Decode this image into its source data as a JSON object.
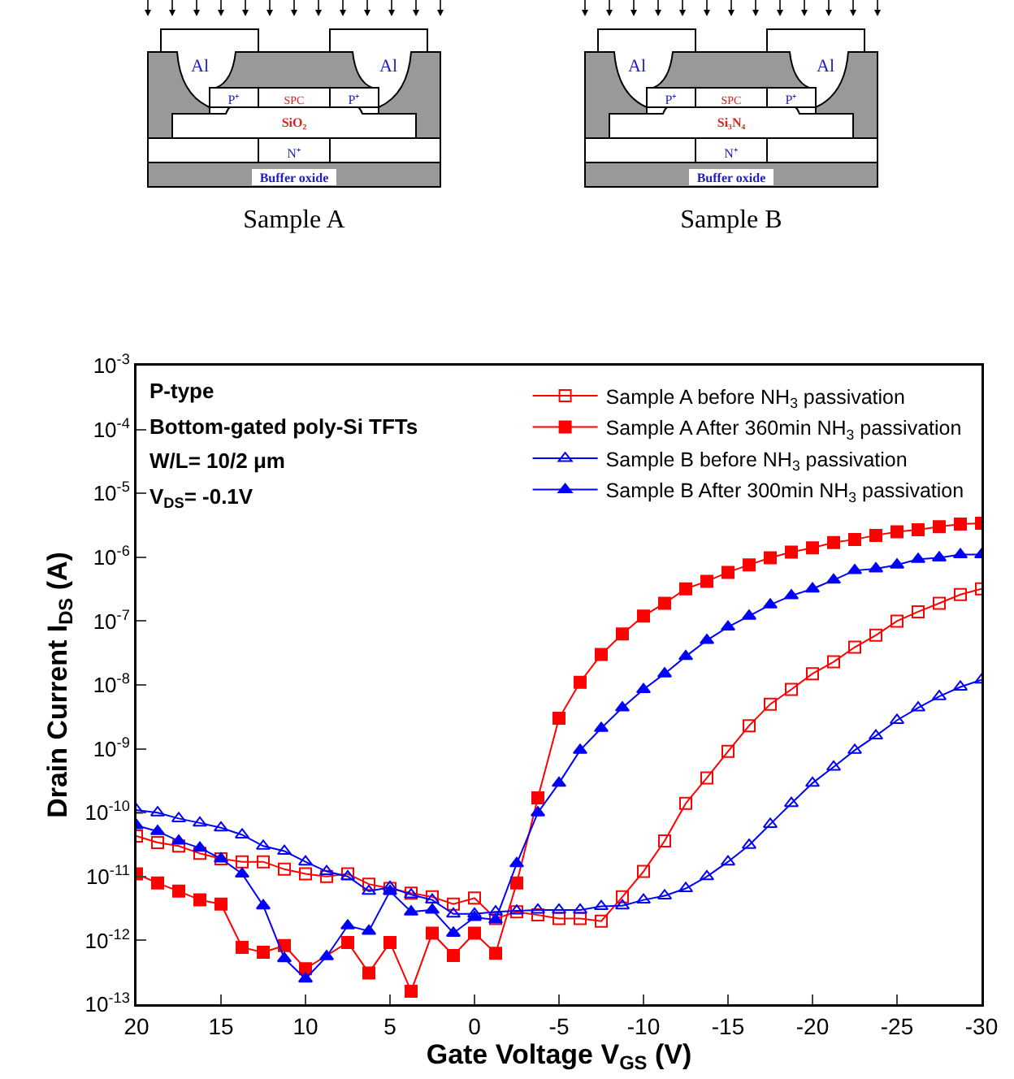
{
  "chart_data": {
    "type": "line",
    "xlabel": "Gate Voltage V$_{GS}$ (V)",
    "ylabel": "Drain Current I$_{DS}$ (A)",
    "annotations": [
      "Al",
      "Al",
      "P⁺",
      "SPC",
      "P⁺",
      "SiO₂",
      "N⁺",
      "Buffer oxide",
      "Sample A",
      "Al",
      "Al",
      "P⁺",
      "SPC",
      "P⁺",
      "Si₃N₄",
      "N⁺",
      "Buffer oxide",
      "Sample B",
      "P-type",
      "Bottom-gated poly-Si TFTs",
      "W/L= 10/2 μm",
      "V$_{DS}$= -0.1V"
    ],
    "x": [
      20,
      18.75,
      17.5,
      16.25,
      15,
      13.75,
      12.5,
      11.25,
      10,
      8.75,
      7.5,
      6.25,
      5,
      3.75,
      2.5,
      1.25,
      0,
      -1.25,
      -2.5,
      -3.75,
      -5,
      -6.25,
      -7.5,
      -8.75,
      -10,
      -11.25,
      -12.5,
      -13.75,
      -15,
      -16.25,
      -17.5,
      -18.75,
      -20,
      -21.25,
      -22.5,
      -23.75,
      -25,
      -26.25,
      -27.5,
      -28.75,
      -30
    ],
    "series": [
      {
        "name": "Sample A before NH$_{3}$ passivation",
        "color": "#ff0000",
        "marker": "square-open",
        "values": [
          4.3e-11,
          3.4e-11,
          3e-11,
          2.3e-11,
          1.9e-11,
          1.7e-11,
          1.7e-11,
          1.3e-11,
          1.1e-11,
          1e-11,
          1.1e-11,
          7.6e-12,
          6.5e-12,
          5.5e-12,
          4.8e-12,
          3.7e-12,
          4.6e-12,
          2.2e-12,
          2.8e-12,
          2.5e-12,
          2.2e-12,
          2.2e-12,
          2e-12,
          4.8e-12,
          1.2e-11,
          3.6e-11,
          1.4e-10,
          3.5e-10,
          9.1e-10,
          2.3e-09,
          5e-09,
          8.5e-09,
          1.5e-08,
          2.3e-08,
          3.9e-08,
          6e-08,
          1e-07,
          1.4e-07,
          1.9e-07,
          2.6e-07,
          3.2e-07
        ]
      },
      {
        "name": "Sample A After 360min NH$_{3}$ passivation",
        "color": "#ff0000",
        "marker": "square",
        "values": [
          1.1e-11,
          7.9e-12,
          5.9e-12,
          4.3e-12,
          3.7e-12,
          7.8e-13,
          6.5e-13,
          8.3e-13,
          3.6e-13,
          null,
          9.3e-13,
          3.1e-13,
          9.3e-13,
          1.6e-13,
          1.3e-12,
          5.8e-13,
          1.3e-12,
          6.3e-13,
          7.9e-12,
          1.7e-10,
          3e-09,
          1.1e-08,
          3e-08,
          6.3e-08,
          1.2e-07,
          1.9e-07,
          3.2e-07,
          4.2e-07,
          5.8e-07,
          7.6e-07,
          9.8e-07,
          1.2e-06,
          1.4e-06,
          1.7e-06,
          1.9e-06,
          2.2e-06,
          2.5e-06,
          2.7e-06,
          3e-06,
          3.3e-06,
          3.4e-06
        ]
      },
      {
        "name": "Sample B before NH$_{3}$ passivation",
        "color": "#0000ff",
        "marker": "triangle-open",
        "values": [
          1.1e-10,
          1e-10,
          8.1e-11,
          6.9e-11,
          5.8e-11,
          4.5e-11,
          3e-11,
          2.5e-11,
          1.7e-11,
          1.2e-11,
          1e-11,
          5.9e-12,
          6.8e-12,
          5.2e-12,
          4.3e-12,
          2.6e-12,
          2.6e-12,
          2.8e-12,
          2.9e-12,
          3e-12,
          3e-12,
          3e-12,
          3.4e-12,
          3.5e-12,
          4.3e-12,
          5e-12,
          6.5e-12,
          1e-11,
          1.7e-11,
          3.1e-11,
          6.6e-11,
          1.4e-10,
          2.9e-10,
          5.2e-10,
          9.5e-10,
          1.6e-09,
          2.8e-09,
          4.4e-09,
          6.6e-09,
          9.3e-09,
          1.2e-08
        ]
      },
      {
        "name": "Sample B After 300min NH$_{3}$ passivation",
        "color": "#0000ff",
        "marker": "triangle",
        "values": [
          6.3e-11,
          5.1e-11,
          3.6e-11,
          2.8e-11,
          1.9e-11,
          1.1e-11,
          3.5e-12,
          5.2e-13,
          2.5e-13,
          5.6e-13,
          1.7e-12,
          1.4e-12,
          5.9e-12,
          2.8e-12,
          3e-12,
          1.3e-12,
          2.3e-12,
          2.1e-12,
          1.6e-11,
          1e-10,
          2.9e-10,
          9.5e-10,
          2.1e-09,
          4.4e-09,
          8.5e-09,
          1.5e-08,
          2.8e-08,
          5e-08,
          8.1e-08,
          1.2e-07,
          1.8e-07,
          2.5e-07,
          3.2e-07,
          4.4e-07,
          6.2e-07,
          6.6e-07,
          7.6e-07,
          9.3e-07,
          9.8e-07,
          1.1e-06,
          1.1e-06
        ]
      }
    ],
    "xlim": [
      20,
      -30
    ],
    "xticks": [
      20,
      15,
      10,
      5,
      0,
      -5,
      -10,
      -15,
      -20,
      -25,
      -30
    ],
    "ylim": [
      1e-13,
      0.001
    ],
    "yticks": [
      {
        "value": 1e-13,
        "label": "10$^{-13}$"
      },
      {
        "value": 1e-12,
        "label": "10$^{-12}$"
      },
      {
        "value": 1e-11,
        "label": "10$^{-11}$"
      },
      {
        "value": 1e-10,
        "label": "10$^{-10}$"
      },
      {
        "value": 1e-09,
        "label": "10$^{-9}$"
      },
      {
        "value": 1e-08,
        "label": "10$^{-8}$"
      },
      {
        "value": 1e-07,
        "label": "10$^{-7}$"
      },
      {
        "value": 1e-06,
        "label": "10$^{-6}$"
      },
      {
        "value": 1e-05,
        "label": "10$^{-5}$"
      },
      {
        "value": 0.0001,
        "label": "10$^{-4}$"
      },
      {
        "value": 0.001,
        "label": "10$^{-3}$"
      }
    ],
    "log": "y",
    "legend": "top right"
  }
}
